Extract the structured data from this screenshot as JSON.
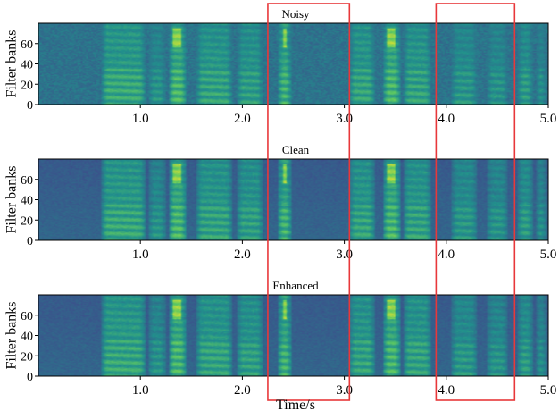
{
  "colors": {
    "colormap": [
      "#440154",
      "#3b528b",
      "#21918c",
      "#5ec962",
      "#fde725"
    ],
    "highlight_box": "#e8383a",
    "axis": "#000000"
  },
  "chart_data": [
    {
      "type": "heatmap",
      "title": "Noisy",
      "ylabel": "Filter banks",
      "xlabel": "",
      "xlim": [
        0.0,
        5.0
      ],
      "ylim": [
        0,
        80
      ],
      "xticks": [
        "1.0",
        "2.0",
        "3.0",
        "4.0",
        "5.0"
      ],
      "yticks": [
        "0",
        "20",
        "40",
        "60"
      ],
      "grid": false,
      "noise_level": 1.0
    },
    {
      "type": "heatmap",
      "title": "Clean",
      "ylabel": "Filter banks",
      "xlabel": "",
      "xlim": [
        0.0,
        5.0
      ],
      "ylim": [
        0,
        80
      ],
      "xticks": [
        "1.0",
        "2.0",
        "3.0",
        "4.0",
        "5.0"
      ],
      "yticks": [
        "0",
        "20",
        "40",
        "60"
      ],
      "grid": false,
      "noise_level": 0.1
    },
    {
      "type": "heatmap",
      "title": "Enhanced",
      "ylabel": "Filter banks",
      "xlabel": "Time/s",
      "xlim": [
        0.0,
        5.0
      ],
      "ylim": [
        0,
        80
      ],
      "xticks": [
        "1.0",
        "2.0",
        "3.0",
        "4.0",
        "5.0"
      ],
      "yticks": [
        "0",
        "20",
        "40",
        "60"
      ],
      "grid": false,
      "noise_level": 0.35
    }
  ],
  "highlight_boxes": [
    {
      "x_start": 2.25,
      "x_end": 3.05
    },
    {
      "x_start": 3.9,
      "x_end": 4.67
    }
  ]
}
